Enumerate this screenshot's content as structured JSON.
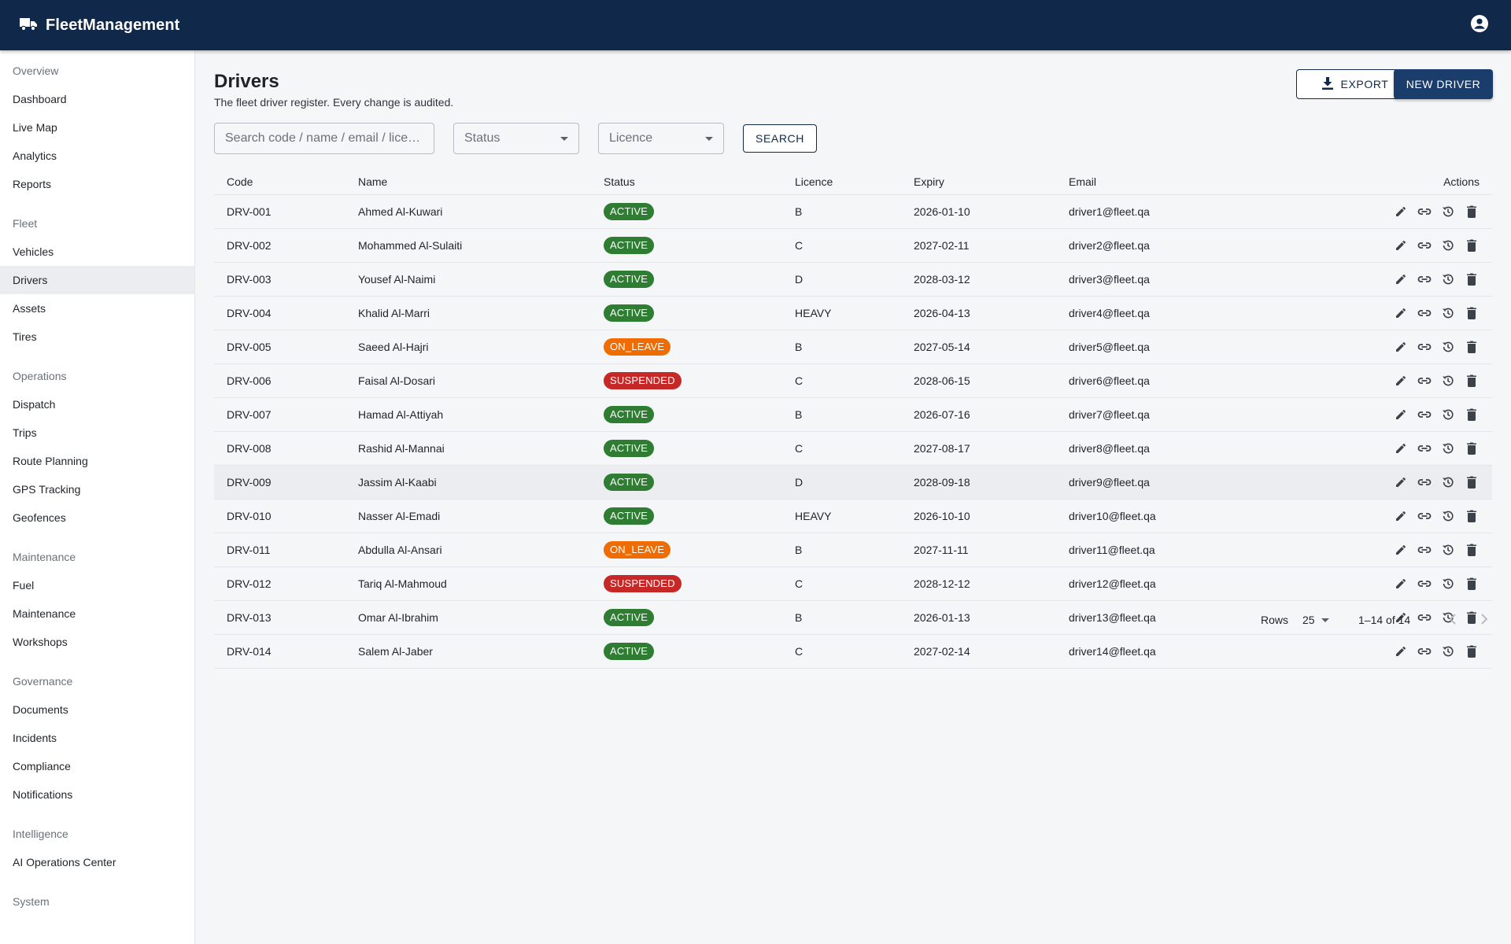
{
  "app": {
    "title": "FleetManagement",
    "icons": {
      "brand": "truck-icon",
      "account": "account-circle-icon"
    }
  },
  "sidebar": {
    "groups": [
      {
        "label": "Overview",
        "items": [
          "Dashboard",
          "Live Map",
          "Analytics",
          "Reports"
        ]
      },
      {
        "label": "Fleet",
        "items": [
          "Vehicles",
          "Drivers",
          "Assets",
          "Tires"
        ]
      },
      {
        "label": "Operations",
        "items": [
          "Dispatch",
          "Trips",
          "Route Planning",
          "GPS Tracking",
          "Geofences"
        ]
      },
      {
        "label": "Maintenance",
        "items": [
          "Fuel",
          "Maintenance",
          "Workshops"
        ]
      },
      {
        "label": "Governance",
        "items": [
          "Documents",
          "Incidents",
          "Compliance",
          "Notifications"
        ]
      },
      {
        "label": "Intelligence",
        "items": [
          "AI Operations Center"
        ]
      },
      {
        "label": "System",
        "items": []
      }
    ],
    "selected": "Drivers"
  },
  "page": {
    "title": "Drivers",
    "subtitle": "The fleet driver register. Every change is audited.",
    "export_label": "EXPORT",
    "new_label": "NEW DRIVER"
  },
  "filters": {
    "search_placeholder": "Search code / name / email / lice…",
    "status_label": "Status",
    "licence_label": "Licence",
    "search_button": "SEARCH"
  },
  "table": {
    "columns": [
      "Code",
      "Name",
      "Status",
      "Licence",
      "Expiry",
      "Email",
      "Actions"
    ],
    "rows": [
      [
        "DRV-001",
        "Ahmed Al-Kuwari",
        "ACTIVE",
        "B",
        "2026-01-10",
        "driver1@fleet.qa"
      ],
      [
        "DRV-002",
        "Mohammed Al-Sulaiti",
        "ACTIVE",
        "C",
        "2027-02-11",
        "driver2@fleet.qa"
      ],
      [
        "DRV-003",
        "Yousef Al-Naimi",
        "ACTIVE",
        "D",
        "2028-03-12",
        "driver3@fleet.qa"
      ],
      [
        "DRV-004",
        "Khalid Al-Marri",
        "ACTIVE",
        "HEAVY",
        "2026-04-13",
        "driver4@fleet.qa"
      ],
      [
        "DRV-005",
        "Saeed Al-Hajri",
        "ON_LEAVE",
        "B",
        "2027-05-14",
        "driver5@fleet.qa"
      ],
      [
        "DRV-006",
        "Faisal Al-Dosari",
        "SUSPENDED",
        "C",
        "2028-06-15",
        "driver6@fleet.qa"
      ],
      [
        "DRV-007",
        "Hamad Al-Attiyah",
        "ACTIVE",
        "B",
        "2026-07-16",
        "driver7@fleet.qa"
      ],
      [
        "DRV-008",
        "Rashid Al-Mannai",
        "ACTIVE",
        "C",
        "2027-08-17",
        "driver8@fleet.qa"
      ],
      [
        "DRV-009",
        "Jassim Al-Kaabi",
        "ACTIVE",
        "D",
        "2028-09-18",
        "driver9@fleet.qa"
      ],
      [
        "DRV-010",
        "Nasser Al-Emadi",
        "ACTIVE",
        "HEAVY",
        "2026-10-10",
        "driver10@fleet.qa"
      ],
      [
        "DRV-011",
        "Abdulla Al-Ansari",
        "ON_LEAVE",
        "B",
        "2027-11-11",
        "driver11@fleet.qa"
      ],
      [
        "DRV-012",
        "Tariq Al-Mahmoud",
        "SUSPENDED",
        "C",
        "2028-12-12",
        "driver12@fleet.qa"
      ],
      [
        "DRV-013",
        "Omar Al-Ibrahim",
        "ACTIVE",
        "B",
        "2026-01-13",
        "driver13@fleet.qa"
      ],
      [
        "DRV-014",
        "Salem Al-Jaber",
        "ACTIVE",
        "C",
        "2027-02-14",
        "driver14@fleet.qa"
      ]
    ],
    "hovered_row": "DRV-009",
    "row_actions": [
      "edit-icon",
      "link-icon",
      "history-icon",
      "delete-icon"
    ],
    "status_colors": {
      "ACTIVE": "#2e7d32",
      "ON_LEAVE": "#ef6c00",
      "SUSPENDED": "#c62828"
    }
  },
  "pagination": {
    "rows_label": "Rows",
    "rows_per_page": "25",
    "range": "1–14 of 14"
  },
  "colors": {
    "appbar": "#10294a",
    "primary_button": "#1a3d6b"
  }
}
